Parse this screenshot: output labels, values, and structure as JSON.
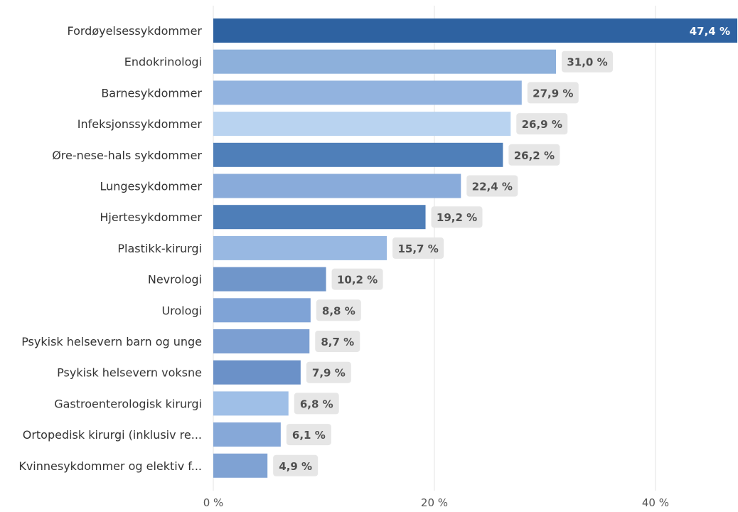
{
  "chart_data": {
    "type": "bar",
    "orientation": "horizontal",
    "categories": [
      "Fordøyelsessykdommer",
      "Endokrinologi",
      "Barnesykdommer",
      "Infeksjonssykdommer",
      "Øre-nese-hals sykdommer",
      "Lungesykdommer",
      "Hjertesykdommer",
      "Plastikk-kirurgi",
      "Nevrologi",
      "Urologi",
      "Psykisk helsevern barn og unge",
      "Psykisk helsevern voksne",
      "Gastroenterologisk kirurgi",
      "Ortopedisk kirurgi (inklusiv re...",
      "Kvinnesykdommer og elektiv f..."
    ],
    "values": [
      47.4,
      31.0,
      27.9,
      26.9,
      26.2,
      22.4,
      19.2,
      15.7,
      10.2,
      8.8,
      8.7,
      7.9,
      6.8,
      6.1,
      4.9
    ],
    "value_labels": [
      "47,4 %",
      "31,0 %",
      "27,9 %",
      "26,9 %",
      "26,2 %",
      "22,4 %",
      "19,2 %",
      "15,7 %",
      "10,2 %",
      "8,8 %",
      "8,7 %",
      "7,9 %",
      "6,8 %",
      "6,1 %",
      "4,9 %"
    ],
    "colors": [
      "#2E62A1",
      "#8DB0DB",
      "#92B3DF",
      "#B9D3F0",
      "#4F7FB9",
      "#89ABDA",
      "#4E7EB8",
      "#98B8E2",
      "#7096CA",
      "#7FA3D6",
      "#7C9FD2",
      "#6B91C8",
      "#9FBFE7",
      "#86A8D8",
      "#7FA2D3"
    ],
    "label_bg": "#E6E6E6",
    "xlim": [
      0,
      47.4
    ],
    "xticks": [
      0,
      20,
      40
    ],
    "xtick_labels": [
      "0 %",
      "20 %",
      "40 %"
    ],
    "grid": true
  }
}
